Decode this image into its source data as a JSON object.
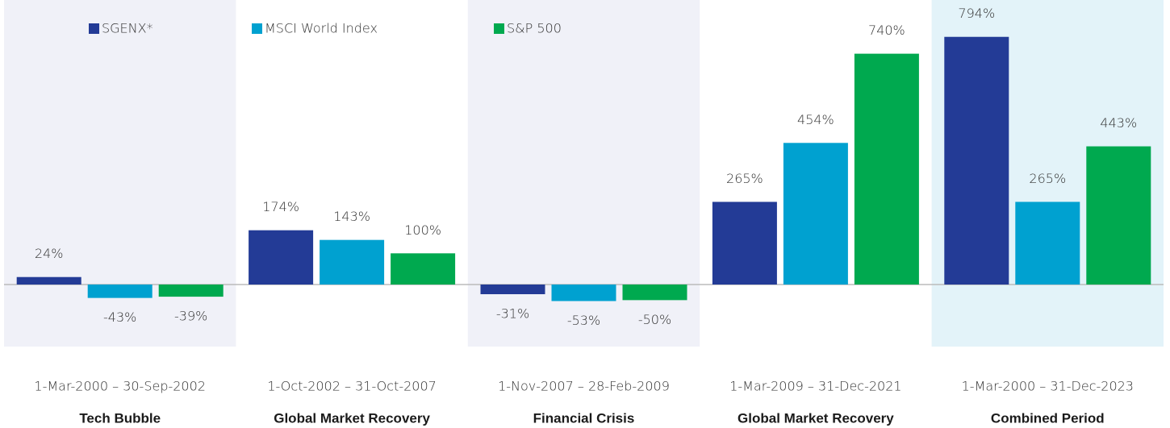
{
  "chart_data": {
    "type": "bar",
    "categories": [
      "Tech Bubble",
      "Global Market Recovery",
      "Financial Crisis",
      "Global Market Recovery",
      "Combined Period"
    ],
    "periods": [
      "1-Mar-2000 – 30-Sep-2002",
      "1-Oct-2002 – 31-Oct-2007",
      "1-Nov-2007 – 28-Feb-2009",
      "1-Mar-2009 – 31-Dec-2021",
      "1-Mar-2000 – 31-Dec-2023"
    ],
    "band_colors": [
      "#f0f1f8",
      null,
      "#f0f1f8",
      null,
      "#e3f3f9"
    ],
    "series": [
      {
        "name": "SGENX*",
        "color": "#233b96",
        "values": [
          24,
          174,
          -31,
          265,
          794
        ],
        "value_labels": [
          "24%",
          "174%",
          "-31%",
          "265%",
          "794%"
        ]
      },
      {
        "name": "MSCI World Index",
        "color": "#00a1d0",
        "values": [
          -43,
          143,
          -53,
          454,
          265
        ],
        "value_labels": [
          "-43%",
          "143%",
          "-53%",
          "454%",
          "265%"
        ]
      },
      {
        "name": "S&P 500",
        "color": "#00a94f",
        "values": [
          -39,
          100,
          -50,
          740,
          443
        ],
        "value_labels": [
          "-39%",
          "100%",
          "-50%",
          "740%",
          "443%"
        ]
      }
    ]
  }
}
